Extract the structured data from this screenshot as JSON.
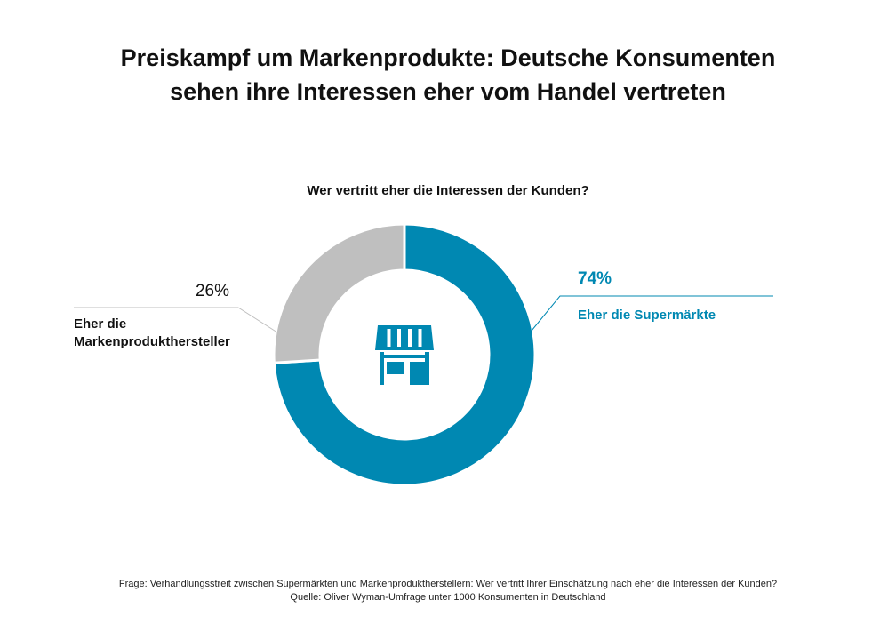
{
  "title": {
    "line1": "Preiskampf um Markenprodukte: Deutsche Konsumenten",
    "line2": "sehen ihre Interessen eher vom Handel vertreten"
  },
  "question": "Wer vertritt eher die Interessen der Kunden?",
  "footer": {
    "line1": "Frage: Verhandlungsstreit zwischen Supermärkten und Markenproduktherstellern: Wer vertritt Ihrer Einschätzung nach eher die Interessen der Kunden?",
    "line2": "Quelle: Oliver Wyman-Umfrage unter 1000 Konsumenten in Deutschland"
  },
  "center_icon": "store-icon",
  "colors": {
    "supermarkets": "#0088b2",
    "manufacturers": "#bfbfbf",
    "icon": "#0088b2"
  },
  "chart_data": {
    "type": "pie",
    "style": "donut",
    "title": "Wer vertritt eher die Interessen der Kunden?",
    "slices": [
      {
        "label": "Eher die Supermärkte",
        "value": 74,
        "display": "74%",
        "color": "#0088b2"
      },
      {
        "label_lines": [
          "Eher die",
          "Markenprodukthersteller"
        ],
        "value": 26,
        "display": "26%",
        "color": "#bfbfbf"
      }
    ]
  }
}
